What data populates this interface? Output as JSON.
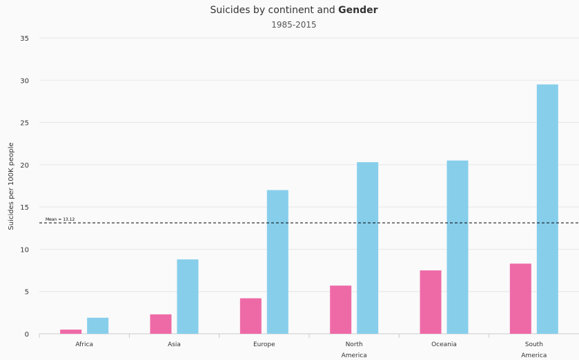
{
  "chart_data": {
    "type": "bar",
    "title_prefix": "Suicides by continent and ",
    "title_bold": "Gender",
    "subtitle": "1985-2015",
    "xlabel": "",
    "ylabel": "Suicides per 100K people",
    "ylim": [
      0,
      35
    ],
    "yticks": [
      0,
      5,
      10,
      15,
      20,
      25,
      30,
      35
    ],
    "grid": true,
    "categories": [
      [
        "Africa"
      ],
      [
        "Asia"
      ],
      [
        "Europe"
      ],
      [
        "North",
        "America"
      ],
      [
        "Oceania"
      ],
      [
        "South",
        "America"
      ]
    ],
    "series": [
      {
        "color": "#ee6aa7",
        "values": [
          0.5,
          2.3,
          4.2,
          5.7,
          7.5,
          8.3
        ]
      },
      {
        "color": "#87ceeb",
        "values": [
          1.9,
          8.8,
          17.0,
          20.3,
          20.5,
          29.5
        ]
      }
    ],
    "mean": {
      "label": "Mean = 13.12",
      "value": 13.12
    }
  }
}
